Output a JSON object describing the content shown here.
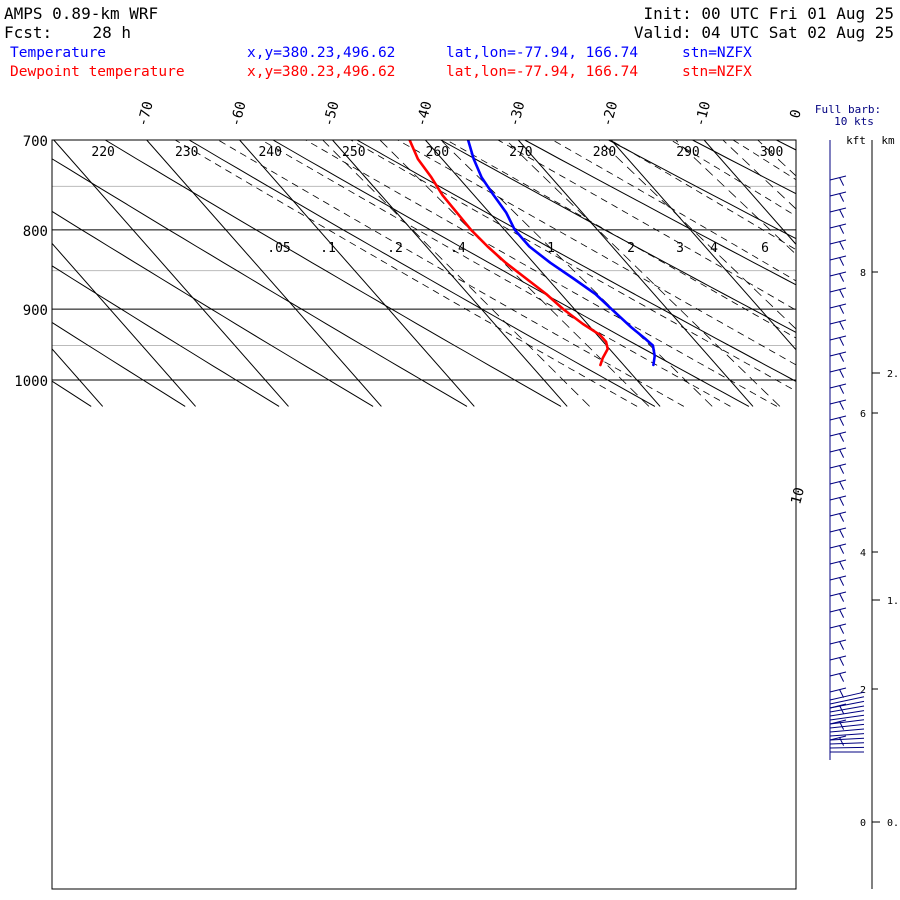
{
  "header": {
    "model": "AMPS 0.89-km WRF",
    "fcst_label": "Fcst:",
    "fcst_value": "28 h",
    "init": "Init: 00 UTC Fri 01 Aug 25",
    "valid": "Valid: 04 UTC Sat 02 Aug 25",
    "temperature_label": "Temperature",
    "dewpoint_label": "Dewpoint temperature",
    "xy_temp": "x,y=380.23,496.62",
    "latlon_temp": "lat,lon=-77.94, 166.74",
    "stn_temp": "stn=NZFX",
    "xy_dew": "x,y=380.23,496.62",
    "latlon_dew": "lat,lon=-77.94, 166.74",
    "stn_dew": "stn=NZFX"
  },
  "wind_panel": {
    "title_line1": "Full barb:",
    "title_line2": "10 kts",
    "unit_kft": "kft",
    "unit_km": "km",
    "kft_ticks": [
      "8",
      "6",
      "4",
      "2",
      "0"
    ],
    "km_ticks": [
      "2.",
      "1.",
      "0."
    ]
  },
  "colors": {
    "temperature": "#0000ff",
    "dewpoint": "#ff0000",
    "barbs": "#000080",
    "grid": "#000000",
    "minor_grid": "#bbbbbb"
  },
  "chart_data": {
    "type": "line",
    "diagram": "Skew-T log-P",
    "title": "",
    "xlabel": "",
    "ylabel": "",
    "ylim": [
      1040,
      700
    ],
    "pressure_labels": [
      "700",
      "800",
      "900",
      "1000"
    ],
    "isotherm_labels": [
      "-70",
      "-60",
      "-50",
      "-40",
      "-30",
      "-20",
      "-10",
      "0",
      "10"
    ],
    "theta_labels": [
      "220",
      "230",
      "240",
      "250",
      "260",
      "270",
      "280",
      "290",
      "300"
    ],
    "mixing_ratio_labels": [
      ".05",
      ".1",
      ".2",
      ".4",
      "1",
      "2",
      "3",
      "4",
      "6"
    ],
    "series": [
      {
        "name": "Temperature",
        "color": "#0000ff",
        "pressure": [
          978,
          965,
          950,
          940,
          925,
          900,
          880,
          860,
          840,
          820,
          800,
          780,
          760,
          740,
          720,
          700
        ],
        "temperature": [
          -36.8,
          -35.8,
          -35.0,
          -35.2,
          -35.6,
          -36.0,
          -36.3,
          -37.2,
          -38.2,
          -38.9,
          -38.9,
          -38.2,
          -37.9,
          -37.5,
          -36.6,
          -35.4
        ]
      },
      {
        "name": "Dewpoint temperature",
        "color": "#ff0000",
        "pressure": [
          978,
          968,
          955,
          945,
          935,
          920,
          900,
          880,
          860,
          840,
          820,
          800,
          780,
          760,
          740,
          720,
          700
        ],
        "temperature": [
          -42.5,
          -41.6,
          -40.2,
          -39.7,
          -39.7,
          -40.5,
          -41.2,
          -41.6,
          -42.3,
          -43.0,
          -43.4,
          -43.6,
          -43.5,
          -43.4,
          -42.9,
          -42.6,
          -41.7
        ]
      }
    ]
  }
}
